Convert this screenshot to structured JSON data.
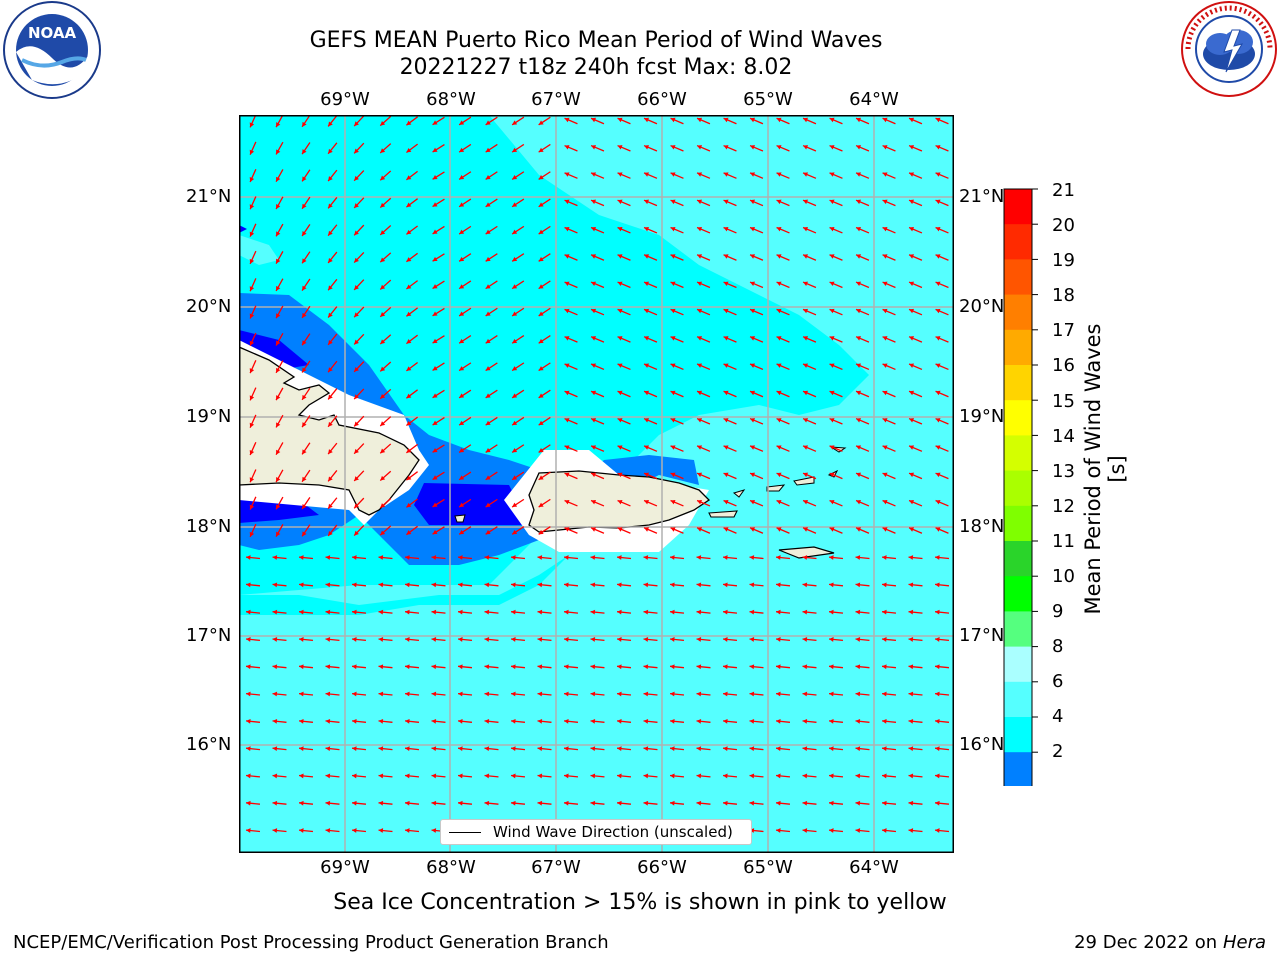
{
  "title": {
    "line1": "GEFS MEAN Puerto Rico Mean Period of Wind Waves",
    "line2": "20221227 t18z 240h fcst   Max: 8.02"
  },
  "logos": {
    "noara_label": "NOAA",
    "noara_ring_text": "NATIONAL OCEANIC AND ATMOSPHERIC ADMINISTRATION · U.S. DEPARTMENT OF COMMERCE",
    "nws_ring_text": "NATIONAL WEATHER SERVICE"
  },
  "map": {
    "lon_labels": [
      "69°W",
      "68°W",
      "67°W",
      "66°W",
      "65°W",
      "64°W"
    ],
    "lat_labels": [
      "21°N",
      "20°N",
      "19°N",
      "18°N",
      "17°N",
      "16°N"
    ],
    "legend_label": "Wind Wave Direction (unscaled)",
    "background_color": "#00ffff",
    "arrow_color": "#ff0000"
  },
  "colorbar": {
    "label": "Mean Period of Wind Waves [s]",
    "ticks": [
      "21",
      "20",
      "19",
      "18",
      "17",
      "16",
      "15",
      "14",
      "13",
      "12",
      "11",
      "10",
      "9",
      "8",
      "6",
      "4",
      "2"
    ],
    "colors": [
      "#ff0000",
      "#ff2a00",
      "#ff5500",
      "#ff7f00",
      "#ffaa00",
      "#ffd400",
      "#ffff00",
      "#d4ff00",
      "#aaff00",
      "#7fff00",
      "#2ad42a",
      "#00ff00",
      "#55ff7f",
      "#aaffff",
      "#55ffff",
      "#00ffff",
      "#0080ff"
    ],
    "under_color": "#0000ff"
  },
  "caption": "Sea Ice Concentration > 15% is shown in pink to yellow",
  "footer": {
    "left": "NCEP/EMC/Verification Post Processing Product Generation Branch",
    "date": "29 Dec 2022 on",
    "machine": "Hera"
  }
}
